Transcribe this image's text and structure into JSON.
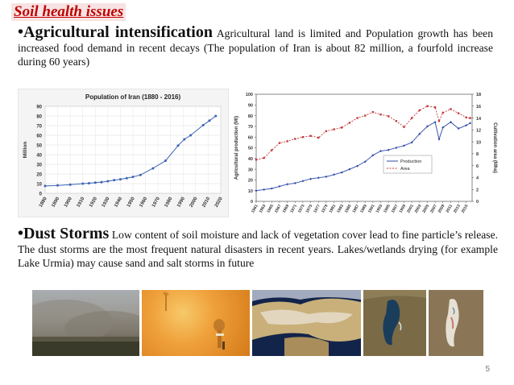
{
  "title": "Soil health issues",
  "para1": {
    "lead": "•Agricultural intensification",
    "text": " Agricultural land is limited and Population growth has been increased food demand in recent decays (The population of Iran is about 82 million, a fourfold increase during 60 years)"
  },
  "para2": {
    "lead": "•Dust Storms",
    "text": " Low content of soil moisture and lack of vegetation cover lead to fine particle’s release. The dust storms are the most frequent natural disasters in recent years. Lakes/wetlands drying (for example Lake Urmia) may cause sand and salt storms in future"
  },
  "page_number": "5",
  "photos": [
    "dust-storm-photo",
    "orange-sandstorm-photo",
    "satellite-dust-photo",
    "lake-urmia-photo",
    "lake-urmia-dry-photo"
  ],
  "chart_data": [
    {
      "type": "line",
      "title": "Population of Iran (1880 - 2016)",
      "ylabel": "Million",
      "xlabel": "",
      "ylim": [
        0,
        90
      ],
      "xlim": [
        1880,
        2020
      ],
      "yticks": [
        0,
        10,
        20,
        30,
        40,
        50,
        60,
        70,
        80,
        90
      ],
      "xticks": [
        1880,
        1890,
        1900,
        1910,
        1920,
        1930,
        1940,
        1950,
        1960,
        1970,
        1980,
        1990,
        2000,
        2010,
        2020
      ],
      "grid": true,
      "line_color": "#3b63b5",
      "series": [
        {
          "x": [
            1880,
            1890,
            1900,
            1910,
            1915,
            1920,
            1925,
            1930,
            1935,
            1940,
            1945,
            1950,
            1956,
            1966,
            1976,
            1986,
            1991,
            1996,
            2006,
            2011,
            2016
          ],
          "values": [
            7.6,
            8.2,
            9.0,
            10.0,
            10.4,
            11.0,
            11.6,
            12.5,
            13.6,
            14.5,
            15.6,
            17.0,
            19.0,
            25.8,
            33.7,
            49.4,
            55.8,
            60.0,
            70.5,
            75.2,
            80.0
          ]
        }
      ]
    },
    {
      "type": "line",
      "ylabel": "Agricultural production (Mt)",
      "y2label": "Cultivation area (Mha)",
      "ylim": [
        0,
        100
      ],
      "y2lim": [
        0,
        18
      ],
      "yticks": [
        0,
        10,
        20,
        30,
        40,
        50,
        60,
        70,
        80,
        90,
        100
      ],
      "y2ticks": [
        0,
        2,
        4,
        6,
        8,
        10,
        12,
        14,
        16,
        18
      ],
      "xticks": [
        1961,
        1963,
        1965,
        1967,
        1969,
        1971,
        1973,
        1975,
        1977,
        1979,
        1981,
        1983,
        1985,
        1987,
        1989,
        1991,
        1993,
        1995,
        1997,
        1999,
        2001,
        2003,
        2005,
        2007,
        2009,
        2011,
        2013,
        2015
      ],
      "legend": "right",
      "grid": false,
      "x": [
        1961,
        1963,
        1965,
        1967,
        1969,
        1971,
        1973,
        1975,
        1977,
        1979,
        1981,
        1983,
        1985,
        1987,
        1989,
        1991,
        1993,
        1995,
        1997,
        1999,
        2001,
        2003,
        2005,
        2007,
        2008,
        2009,
        2011,
        2013,
        2015,
        2016
      ],
      "series": [
        {
          "name": "Production",
          "axis": "left",
          "color": "#2e4aa8",
          "values": [
            10,
            11,
            12,
            14,
            16,
            17,
            19,
            21,
            22,
            23,
            25,
            27,
            30,
            33,
            37,
            43,
            47,
            48,
            50,
            52,
            55,
            63,
            70,
            74,
            58,
            69,
            74,
            68,
            71,
            73
          ]
        },
        {
          "name": "Area",
          "axis": "right",
          "color": "#c23a3a",
          "values": [
            7.0,
            7.3,
            8.6,
            9.8,
            10.1,
            10.5,
            10.8,
            11.0,
            10.7,
            11.8,
            12.1,
            12.4,
            13.2,
            14.0,
            14.4,
            15.0,
            14.6,
            14.3,
            13.5,
            12.5,
            14.0,
            15.3,
            16.0,
            15.8,
            13.5,
            14.9,
            15.5,
            14.8,
            14.1,
            14.0
          ]
        }
      ]
    }
  ]
}
